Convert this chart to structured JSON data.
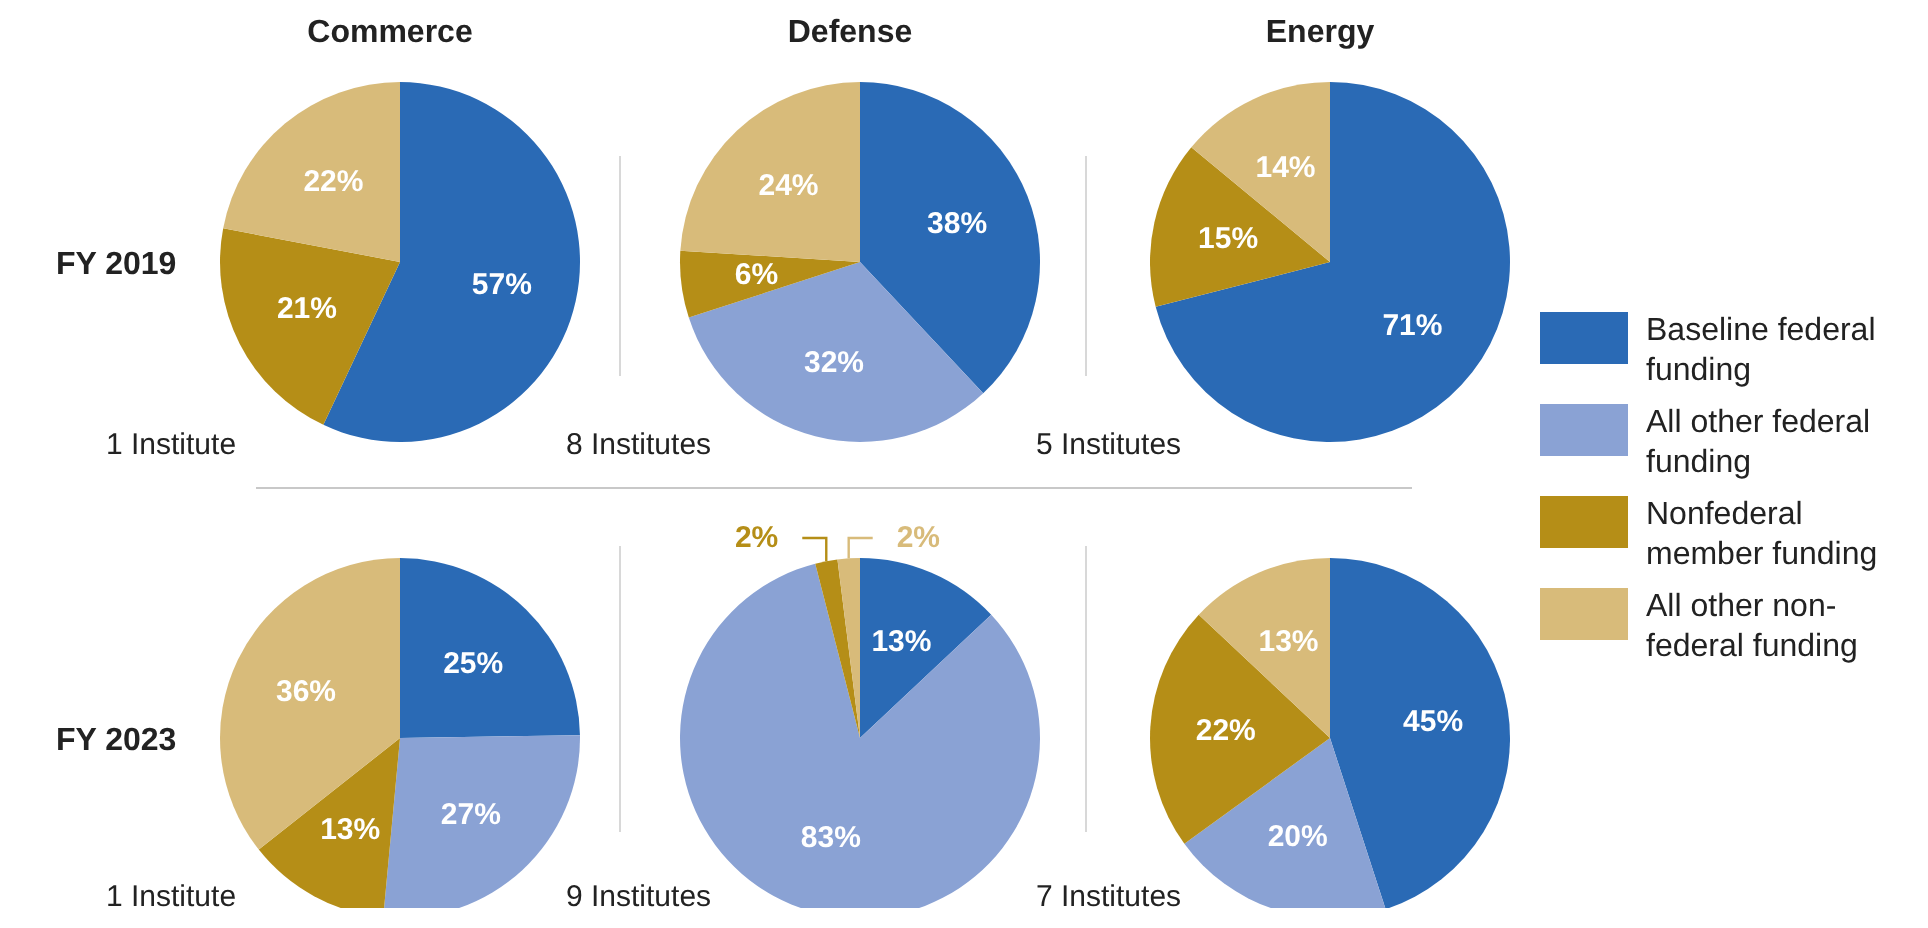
{
  "chart_data": [
    {
      "type": "pie",
      "title": "Commerce",
      "ylabel": "FY 2019",
      "annotations": [
        "1 Institute"
      ],
      "values": [
        57,
        0,
        21,
        22
      ],
      "value_labels": [
        "57%",
        null,
        "21%",
        "22%"
      ],
      "colors": [
        "#2a6ab5",
        "#8aa2d4",
        "#b58e17",
        "#d8bb7a"
      ]
    },
    {
      "type": "pie",
      "title": "Defense",
      "annotations": [
        "8 Institutes"
      ],
      "values": [
        38,
        32,
        6,
        24
      ],
      "value_labels": [
        "38%",
        "32%",
        "6%",
        "24%"
      ],
      "colors": [
        "#2a6ab5",
        "#8aa2d4",
        "#b58e17",
        "#d8bb7a"
      ]
    },
    {
      "type": "pie",
      "title": "Energy",
      "legend": "right",
      "annotations": [
        "5 Institutes"
      ],
      "categories": [
        "Baseline federal funding",
        "All other federal funding",
        "Nonfederal member funding",
        "All other non-federal funding"
      ],
      "values": [
        71,
        0,
        15,
        14
      ],
      "value_labels": [
        "71%",
        null,
        "15%",
        "14%"
      ],
      "colors": [
        "#2a6ab5",
        "#8aa2d4",
        "#b58e17",
        "#d8bb7a"
      ]
    },
    {
      "type": "pie",
      "ylabel": "FY 2023",
      "annotations": [
        "1 Institute"
      ],
      "values": [
        25,
        27,
        13,
        36
      ],
      "value_labels": [
        "25%",
        "27%",
        "13%",
        "36%"
      ],
      "colors": [
        "#2a6ab5",
        "#8aa2d4",
        "#b58e17",
        "#d8bb7a"
      ]
    },
    {
      "type": "pie",
      "annotations": [
        "9 Institutes"
      ],
      "values": [
        13,
        83,
        2,
        2
      ],
      "value_labels": [
        "13%",
        "83%",
        "2%",
        "2%"
      ],
      "colors": [
        "#2a6ab5",
        "#8aa2d4",
        "#b58e17",
        "#d8bb7a"
      ]
    },
    {
      "type": "pie",
      "annotations": [
        "7 Institutes"
      ],
      "values": [
        45,
        20,
        22,
        13
      ],
      "value_labels": [
        "45%",
        "20%",
        "22%",
        "13%"
      ],
      "colors": [
        "#2a6ab5",
        "#8aa2d4",
        "#b58e17",
        "#d8bb7a"
      ]
    }
  ]
}
